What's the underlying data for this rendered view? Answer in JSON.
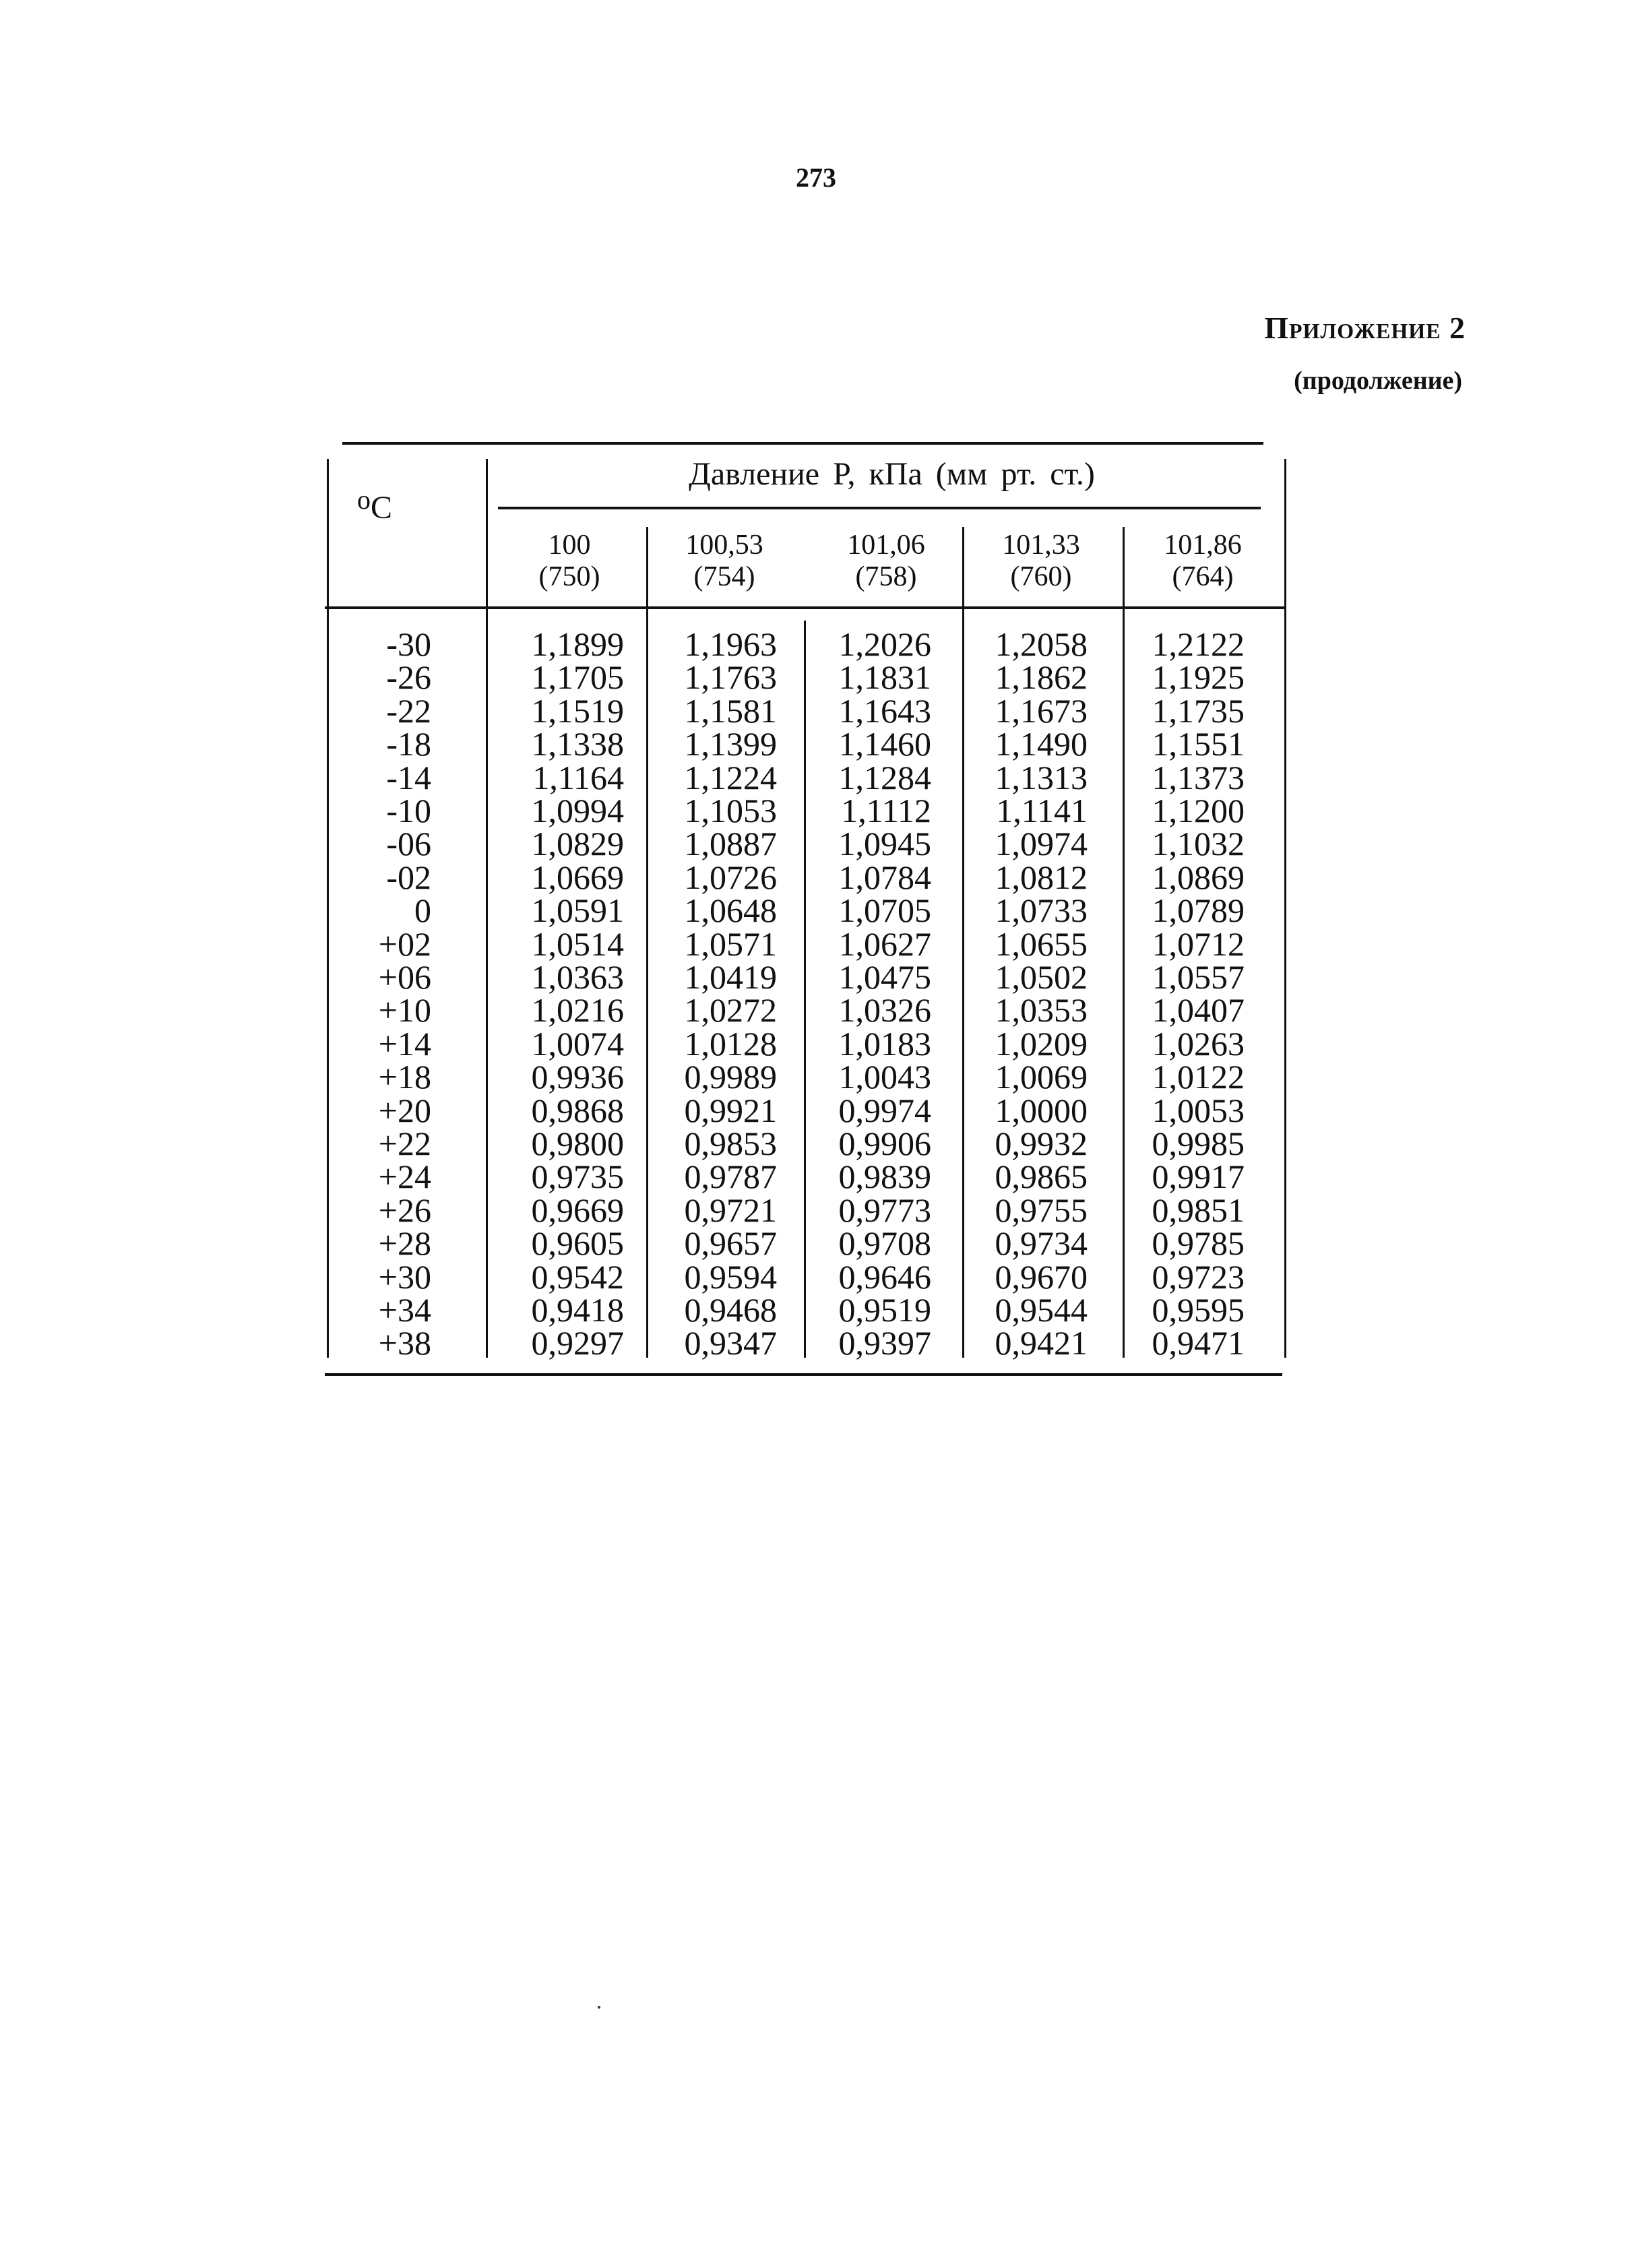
{
  "page_number": "273",
  "appendix": {
    "title": "Приложение 2",
    "subtitle": "(продолжение)"
  },
  "table": {
    "row_header": {
      "degree": "o",
      "unit": "C"
    },
    "group_header": "Давление P, кПа (мм рт. ст.)",
    "columns": [
      {
        "kpa": "100",
        "mmhg": "(750)"
      },
      {
        "kpa": "100,53",
        "mmhg": "(754)"
      },
      {
        "kpa": "101,06",
        "mmhg": "(758)"
      },
      {
        "kpa": "101,33",
        "mmhg": "(760)"
      },
      {
        "kpa": "101,86",
        "mmhg": "(764)"
      }
    ],
    "rows": [
      {
        "t": "-30",
        "v": [
          "1,1899",
          "1,1963",
          "1,2026",
          "1,2058",
          "1,2122"
        ]
      },
      {
        "t": "-26",
        "v": [
          "1,1705",
          "1,1763",
          "1,1831",
          "1,1862",
          "1,1925"
        ]
      },
      {
        "t": "-22",
        "v": [
          "1,1519",
          "1,1581",
          "1,1643",
          "1,1673",
          "1,1735"
        ]
      },
      {
        "t": "-18",
        "v": [
          "1,1338",
          "1,1399",
          "1,1460",
          "1,1490",
          "1,1551"
        ]
      },
      {
        "t": "-14",
        "v": [
          "1,1164",
          "1,1224",
          "1,1284",
          "1,1313",
          "1,1373"
        ]
      },
      {
        "t": "-10",
        "v": [
          "1,0994",
          "1,1053",
          "1,1112",
          "1,1141",
          "1,1200"
        ]
      },
      {
        "t": "-06",
        "v": [
          "1,0829",
          "1,0887",
          "1,0945",
          "1,0974",
          "1,1032"
        ]
      },
      {
        "t": "-02",
        "v": [
          "1,0669",
          "1,0726",
          "1,0784",
          "1,0812",
          "1,0869"
        ]
      },
      {
        "t": "0",
        "v": [
          "1,0591",
          "1,0648",
          "1,0705",
          "1,0733",
          "1,0789"
        ]
      },
      {
        "t": "+02",
        "v": [
          "1,0514",
          "1,0571",
          "1,0627",
          "1,0655",
          "1,0712"
        ]
      },
      {
        "t": "+06",
        "v": [
          "1,0363",
          "1,0419",
          "1,0475",
          "1,0502",
          "1,0557"
        ]
      },
      {
        "t": "+10",
        "v": [
          "1,0216",
          "1,0272",
          "1,0326",
          "1,0353",
          "1,0407"
        ]
      },
      {
        "t": "+14",
        "v": [
          "1,0074",
          "1,0128",
          "1,0183",
          "1,0209",
          "1,0263"
        ]
      },
      {
        "t": "+18",
        "v": [
          "0,9936",
          "0,9989",
          "1,0043",
          "1,0069",
          "1,0122"
        ]
      },
      {
        "t": "+20",
        "v": [
          "0,9868",
          "0,9921",
          "0,9974",
          "1,0000",
          "1,0053"
        ]
      },
      {
        "t": "+22",
        "v": [
          "0,9800",
          "0,9853",
          "0,9906",
          "0,9932",
          "0,9985"
        ]
      },
      {
        "t": "+24",
        "v": [
          "0,9735",
          "0,9787",
          "0,9839",
          "0,9865",
          "0,9917"
        ]
      },
      {
        "t": "+26",
        "v": [
          "0,9669",
          "0,9721",
          "0,9773",
          "0,9755",
          "0,9851"
        ]
      },
      {
        "t": "+28",
        "v": [
          "0,9605",
          "0,9657",
          "0,9708",
          "0,9734",
          "0,9785"
        ]
      },
      {
        "t": "+30",
        "v": [
          "0,9542",
          "0,9594",
          "0,9646",
          "0,9670",
          "0,9723"
        ]
      },
      {
        "t": "+34",
        "v": [
          "0,9418",
          "0,9468",
          "0,9519",
          "0,9544",
          "0,9595"
        ]
      },
      {
        "t": "+38",
        "v": [
          "0,9297",
          "0,9347",
          "0,9397",
          "0,9421",
          "0,9471"
        ]
      }
    ]
  }
}
